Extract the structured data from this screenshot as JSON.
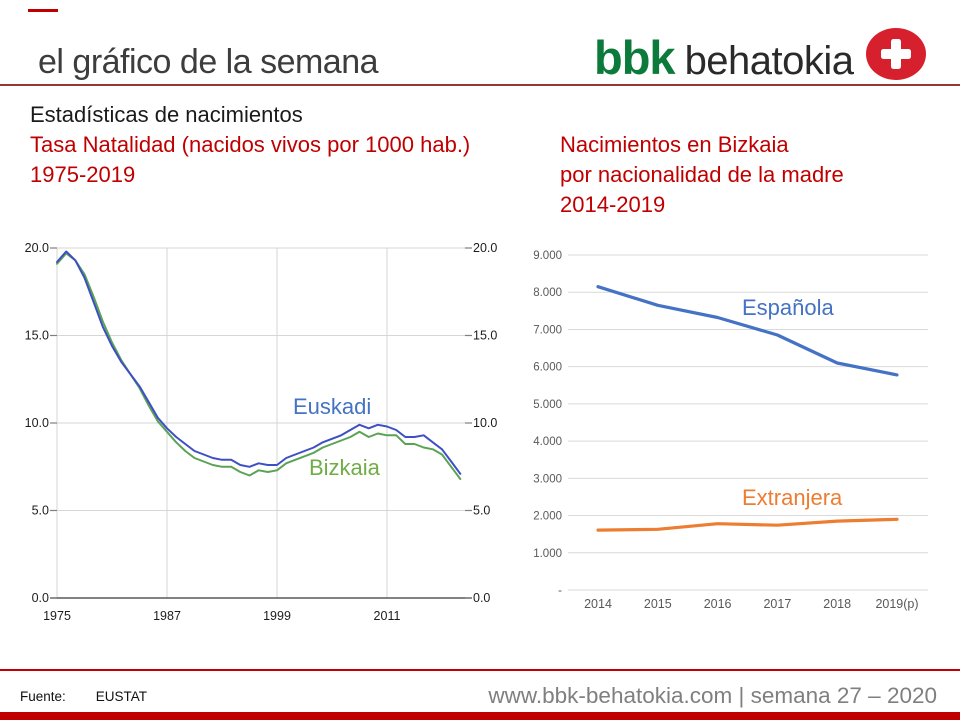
{
  "header": {
    "title": "el gráfico de la semana",
    "logo_bbk": "bbk",
    "logo_behatokia": "behatokia"
  },
  "intro": {
    "heading": "Estadísticas de nacimientos",
    "left_subtitle": "Tasa Natalidad (nacidos vivos por 1000 hab.)",
    "left_period": "1975-2019",
    "right_title": "Nacimientos en Bizkaia",
    "right_subtitle": "por nacionalidad de la madre",
    "right_period": "2014-2019"
  },
  "footer": {
    "source_label": "Fuente:",
    "source_value": "EUSTAT",
    "website": "www.bbk-behatokia.com | semana 27 – 2020"
  },
  "colors": {
    "accent_red": "#c00000",
    "header_divider_red": "#953735",
    "bbk_green": "#0b7a3b",
    "logo_circle_red": "#d6202e",
    "text_gray": "#7f7f7f",
    "axis_gray": "#595959",
    "grid_gray": "#d6d6d6"
  },
  "chart_data": [
    {
      "type": "line",
      "title": "Tasa Natalidad (nacidos vivos por 1000 hab.) 1975-2019",
      "years": [
        1975,
        1976,
        1977,
        1978,
        1979,
        1980,
        1981,
        1982,
        1983,
        1984,
        1985,
        1986,
        1987,
        1988,
        1989,
        1990,
        1991,
        1992,
        1993,
        1994,
        1995,
        1996,
        1997,
        1998,
        1999,
        2000,
        2001,
        2002,
        2003,
        2004,
        2005,
        2006,
        2007,
        2008,
        2009,
        2010,
        2011,
        2012,
        2013,
        2014,
        2015,
        2016,
        2017,
        2018,
        2019
      ],
      "series": [
        {
          "name": "Euskadi",
          "color": "#3e4fc5",
          "label_color": "#4472c4",
          "values": [
            19.2,
            19.8,
            19.3,
            18.3,
            16.9,
            15.5,
            14.4,
            13.5,
            12.8,
            12.1,
            11.2,
            10.3,
            9.7,
            9.2,
            8.8,
            8.4,
            8.2,
            8.0,
            7.9,
            7.9,
            7.6,
            7.5,
            7.7,
            7.6,
            7.6,
            8.0,
            8.2,
            8.4,
            8.6,
            8.9,
            9.1,
            9.3,
            9.6,
            9.9,
            9.7,
            9.9,
            9.8,
            9.6,
            9.2,
            9.2,
            9.3,
            8.9,
            8.5,
            7.8,
            7.1
          ]
        },
        {
          "name": "Bizkaia",
          "color": "#5ba354",
          "label_color": "#70ad47",
          "values": [
            19.1,
            19.7,
            19.3,
            18.5,
            17.2,
            15.8,
            14.6,
            13.6,
            12.8,
            12.0,
            11.0,
            10.1,
            9.5,
            8.9,
            8.4,
            8.0,
            7.8,
            7.6,
            7.5,
            7.5,
            7.2,
            7.0,
            7.3,
            7.2,
            7.3,
            7.7,
            7.9,
            8.1,
            8.3,
            8.6,
            8.8,
            9.0,
            9.2,
            9.5,
            9.2,
            9.4,
            9.3,
            9.3,
            8.8,
            8.8,
            8.6,
            8.5,
            8.2,
            7.5,
            6.8
          ]
        }
      ],
      "xticks": [
        "1975",
        "1987",
        "1999",
        "2011"
      ],
      "yticks": [
        "20.0",
        "15.0",
        "10.0",
        "5.0",
        "0.0"
      ],
      "ylim": [
        0,
        20
      ],
      "grid": true
    },
    {
      "type": "line",
      "title": "Nacimientos en Bizkaia por nacionalidad de la madre 2014-2019",
      "categories": [
        "2014",
        "2015",
        "2016",
        "2017",
        "2018",
        "2019(p)"
      ],
      "series": [
        {
          "name": "Española",
          "color": "#4472c4",
          "values": [
            8150,
            7650,
            7320,
            6850,
            6100,
            5780
          ]
        },
        {
          "name": "Extranjera",
          "color": "#ed7d31",
          "values": [
            1610,
            1630,
            1780,
            1740,
            1850,
            1900
          ]
        }
      ],
      "yticks": [
        "9.000",
        "8.000",
        "7.000",
        "6.000",
        "5.000",
        "4.000",
        "3.000",
        "2.000",
        "1.000",
        "-"
      ],
      "ylim": [
        0,
        9000
      ],
      "grid": true
    }
  ]
}
